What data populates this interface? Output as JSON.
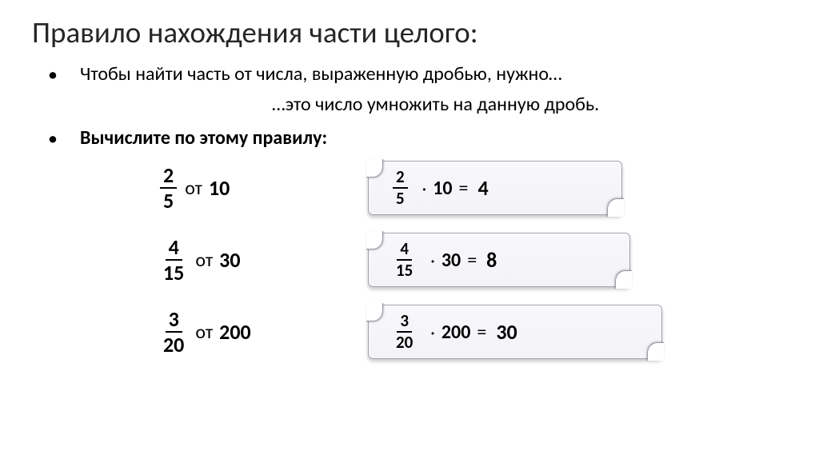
{
  "title": "Правило нахождения части целого:",
  "bullets": {
    "line1": "Чтобы найти часть от числа, выраженную дробью, нужно…",
    "line1_indent": "…это число умножить на данную дробь.",
    "line2": "Вычислите по этому правилу:"
  },
  "rows": [
    {
      "numerator": "2",
      "denominator": "5",
      "ot": "от",
      "whole": "10",
      "ans_num": "2",
      "ans_den": "5",
      "ans_whole": "10",
      "eq": "=",
      "result": "4",
      "box_class": "box-w1"
    },
    {
      "numerator": "4",
      "denominator": "15",
      "ot": "от",
      "whole": "30",
      "ans_num": "4",
      "ans_den": "15",
      "ans_whole": "30",
      "eq": "=",
      "result": "8",
      "box_class": "box-w2"
    },
    {
      "numerator": "3",
      "denominator": "20",
      "ot": "от",
      "whole": "200",
      "ans_num": "3",
      "ans_den": "20",
      "ans_whole": "200",
      "eq": "=",
      "result": "30",
      "box_class": "box-w3"
    }
  ],
  "styling": {
    "background_color": "#ffffff",
    "title_color": "#262626",
    "title_fontsize": 37,
    "body_fontsize": 24,
    "fraction_large_fontsize": 26,
    "fraction_small_fontsize": 21,
    "scrollbox_bg_gradient": [
      "#f8f8fb",
      "#f3f3f8"
    ],
    "scrollbox_border": "#a3a3b0",
    "scrollbox_height": 66,
    "font_family": "Calibri"
  }
}
